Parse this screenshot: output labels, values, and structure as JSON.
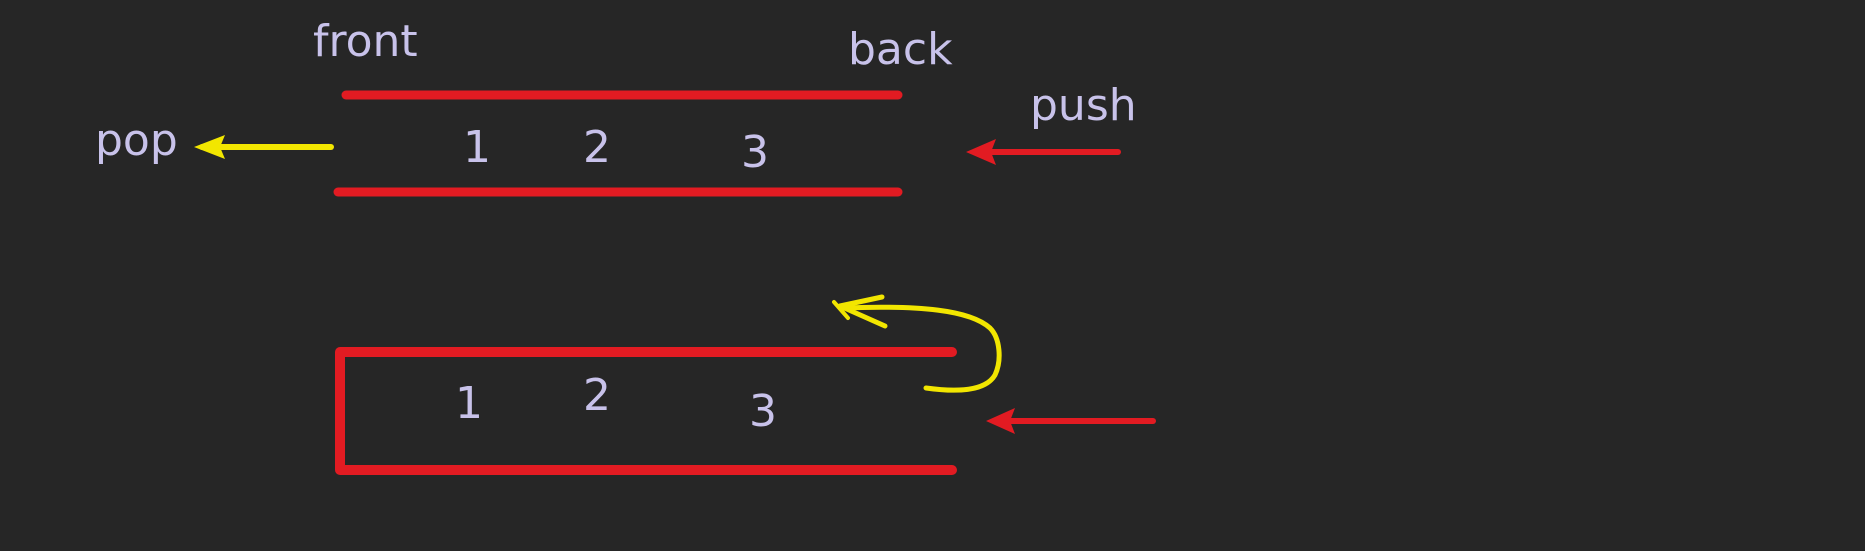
{
  "colors": {
    "background": "#262626",
    "text": "#c8c2ea",
    "queue_line": "#e21b22",
    "pop_arrow": "#f2e600",
    "curve_arrow": "#f2e600",
    "push_arrow": "#e21b22"
  },
  "queue_diagram": {
    "front_label": "front",
    "back_label": "back",
    "pop_label": "pop",
    "push_label": "push",
    "elements": [
      "1",
      "2",
      "3"
    ]
  },
  "stack_diagram": {
    "elements": [
      "1",
      "2",
      "3"
    ]
  },
  "icons": {
    "pop_arrow": "arrow-left-icon",
    "push_arrow": "arrow-left-icon",
    "return_arrow": "curved-arrow-icon"
  }
}
